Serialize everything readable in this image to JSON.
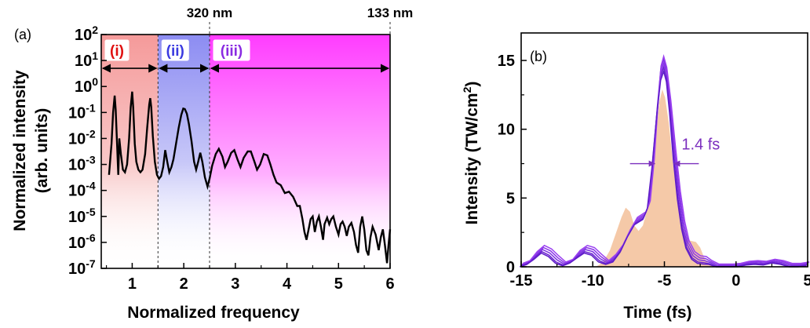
{
  "chart_data": [
    {
      "panel": "(a)",
      "type": "line",
      "xlabel": "Normalized frequency",
      "ylabel_lines": [
        "Normalized intensity",
        "(arb. units)"
      ],
      "xlim": [
        0.4,
        6.0
      ],
      "ylim_log10": [
        -7,
        2
      ],
      "yscale": "log",
      "x_ticks": [
        "1",
        "2",
        "3",
        "4",
        "5",
        "6"
      ],
      "y_tick_exponents": [
        "2",
        "1",
        "0",
        "-1",
        "-2",
        "-3",
        "-4",
        "-5",
        "-6",
        "-7"
      ],
      "top_labels": [
        {
          "x": 2.5,
          "text": "320 nm"
        },
        {
          "x": 6.0,
          "text": "133 nm"
        }
      ],
      "regions": [
        {
          "label": "(i)",
          "x": [
            0.4,
            1.5
          ],
          "color": "#f59a9a",
          "label_color": "#e01010"
        },
        {
          "label": "(ii)",
          "x": [
            1.5,
            2.5
          ],
          "color": "#8c8cf2",
          "label_color": "#3a3ae0"
        },
        {
          "label": "(iii)",
          "x": [
            2.5,
            6.0
          ],
          "color": "#ff3cff",
          "label_color": "#8a2be2"
        }
      ],
      "series": [
        {
          "color": "#000000",
          "points": [
            [
              0.55,
              -3.4
            ],
            [
              0.6,
              -2.2
            ],
            [
              0.63,
              -1.0
            ],
            [
              0.66,
              -0.35
            ],
            [
              0.68,
              -0.9
            ],
            [
              0.71,
              -2.4
            ],
            [
              0.73,
              -3.4
            ],
            [
              0.75,
              -2.0
            ],
            [
              0.78,
              -2.6
            ],
            [
              0.82,
              -3.2
            ],
            [
              0.86,
              -3.3
            ],
            [
              0.9,
              -3.0
            ],
            [
              0.94,
              -2.0
            ],
            [
              0.97,
              -0.8
            ],
            [
              1.0,
              -0.2
            ],
            [
              1.02,
              -0.8
            ],
            [
              1.05,
              -2.2
            ],
            [
              1.08,
              -2.9
            ],
            [
              1.12,
              -3.2
            ],
            [
              1.16,
              -3.3
            ],
            [
              1.2,
              -3.2
            ],
            [
              1.25,
              -2.6
            ],
            [
              1.29,
              -1.6
            ],
            [
              1.33,
              -0.7
            ],
            [
              1.35,
              -0.45
            ],
            [
              1.37,
              -0.8
            ],
            [
              1.4,
              -1.9
            ],
            [
              1.44,
              -2.9
            ],
            [
              1.48,
              -3.4
            ],
            [
              1.52,
              -3.55
            ],
            [
              1.56,
              -3.45
            ],
            [
              1.6,
              -3.1
            ],
            [
              1.64,
              -2.45
            ],
            [
              1.68,
              -2.9
            ],
            [
              1.72,
              -3.3
            ],
            [
              1.76,
              -3.1
            ],
            [
              1.8,
              -2.8
            ],
            [
              1.85,
              -2.2
            ],
            [
              1.9,
              -1.6
            ],
            [
              1.95,
              -1.1
            ],
            [
              1.99,
              -0.85
            ],
            [
              2.02,
              -0.87
            ],
            [
              2.06,
              -1.05
            ],
            [
              2.1,
              -1.45
            ],
            [
              2.15,
              -2.1
            ],
            [
              2.2,
              -2.9
            ],
            [
              2.24,
              -3.2
            ],
            [
              2.28,
              -2.9
            ],
            [
              2.32,
              -2.55
            ],
            [
              2.36,
              -2.9
            ],
            [
              2.41,
              -3.5
            ],
            [
              2.46,
              -3.85
            ],
            [
              2.5,
              -3.55
            ],
            [
              2.55,
              -3.05
            ],
            [
              2.62,
              -2.6
            ],
            [
              2.68,
              -2.4
            ],
            [
              2.75,
              -2.7
            ],
            [
              2.8,
              -3.1
            ],
            [
              2.85,
              -2.9
            ],
            [
              2.92,
              -2.55
            ],
            [
              2.98,
              -2.45
            ],
            [
              3.04,
              -2.8
            ],
            [
              3.1,
              -3.1
            ],
            [
              3.16,
              -2.75
            ],
            [
              3.24,
              -2.5
            ],
            [
              3.3,
              -2.5
            ],
            [
              3.37,
              -2.9
            ],
            [
              3.42,
              -3.2
            ],
            [
              3.48,
              -3.0
            ],
            [
              3.55,
              -2.6
            ],
            [
              3.62,
              -2.65
            ],
            [
              3.68,
              -3.0
            ],
            [
              3.74,
              -3.4
            ],
            [
              3.8,
              -3.7
            ],
            [
              3.88,
              -3.8
            ],
            [
              3.96,
              -4.1
            ],
            [
              4.04,
              -4.05
            ],
            [
              4.12,
              -4.25
            ],
            [
              4.2,
              -4.6
            ],
            [
              4.25,
              -4.6
            ],
            [
              4.3,
              -5.1
            ],
            [
              4.34,
              -5.6
            ],
            [
              4.38,
              -5.9
            ],
            [
              4.42,
              -5.5
            ],
            [
              4.46,
              -5.1
            ],
            [
              4.5,
              -5.0
            ],
            [
              4.54,
              -5.6
            ],
            [
              4.58,
              -5.2
            ],
            [
              4.62,
              -5.0
            ],
            [
              4.66,
              -5.4
            ],
            [
              4.7,
              -5.9
            ],
            [
              4.73,
              -5.3
            ],
            [
              4.78,
              -5.05
            ],
            [
              4.82,
              -5.3
            ],
            [
              4.86,
              -5.1
            ],
            [
              4.9,
              -5.0
            ],
            [
              4.95,
              -5.4
            ],
            [
              5.0,
              -5.7
            ],
            [
              5.04,
              -5.3
            ],
            [
              5.08,
              -5.2
            ],
            [
              5.12,
              -5.4
            ],
            [
              5.16,
              -5.75
            ],
            [
              5.2,
              -5.4
            ],
            [
              5.25,
              -5.25
            ],
            [
              5.3,
              -5.6
            ],
            [
              5.34,
              -6.1
            ],
            [
              5.38,
              -6.4
            ],
            [
              5.42,
              -5.4
            ],
            [
              5.46,
              -5.0
            ],
            [
              5.5,
              -5.5
            ],
            [
              5.54,
              -6.3
            ],
            [
              5.58,
              -6.5
            ],
            [
              5.62,
              -5.8
            ],
            [
              5.66,
              -5.4
            ],
            [
              5.72,
              -5.7
            ],
            [
              5.78,
              -6.3
            ],
            [
              5.82,
              -5.8
            ],
            [
              5.86,
              -5.5
            ],
            [
              5.9,
              -6.1
            ],
            [
              5.94,
              -6.8
            ],
            [
              5.97,
              -6.1
            ],
            [
              6.0,
              -5.5
            ]
          ]
        }
      ],
      "annotations": [
        {
          "text": "",
          "arrow_x": [
            0.4,
            1.5
          ],
          "y_log10": 0.7
        },
        {
          "text": "",
          "arrow_x": [
            1.5,
            2.5
          ],
          "y_log10": 0.7
        },
        {
          "text": "",
          "arrow_x": [
            2.5,
            6.0
          ],
          "y_log10": 0.7
        }
      ]
    },
    {
      "panel": "(b)",
      "type": "line",
      "xlabel": "Time (fs)",
      "ylabel": "Intensity (TW/cm",
      "ylabel_sup": "2",
      "ylabel_end": ")",
      "xlim": [
        -15,
        5
      ],
      "ylim": [
        0,
        17
      ],
      "x_ticks": [
        -15,
        -10,
        -5,
        0,
        5
      ],
      "y_ticks": [
        0,
        5,
        10,
        15
      ],
      "annotation": {
        "text": "1.4 fs",
        "x_left": -5.65,
        "x_right": -4.35,
        "y": 7.5,
        "color": "#7b2fbe"
      },
      "filled_area": {
        "color": "#f5c9a8",
        "points": [
          [
            -9.8,
            0
          ],
          [
            -9.3,
            0.3
          ],
          [
            -8.8,
            1.2
          ],
          [
            -8.4,
            2.4
          ],
          [
            -8.0,
            3.6
          ],
          [
            -7.7,
            4.3
          ],
          [
            -7.4,
            4.0
          ],
          [
            -7.1,
            3.0
          ],
          [
            -6.8,
            2.6
          ],
          [
            -6.5,
            3.0
          ],
          [
            -6.2,
            4.2
          ],
          [
            -5.9,
            6.5
          ],
          [
            -5.6,
            9.5
          ],
          [
            -5.35,
            12.0
          ],
          [
            -5.15,
            12.9
          ],
          [
            -4.95,
            12.3
          ],
          [
            -4.7,
            10.5
          ],
          [
            -4.4,
            7.5
          ],
          [
            -4.1,
            5.0
          ],
          [
            -3.8,
            3.3
          ],
          [
            -3.5,
            2.3
          ],
          [
            -3.2,
            1.9
          ],
          [
            -2.8,
            1.8
          ],
          [
            -2.5,
            1.4
          ],
          [
            -2.2,
            0.6
          ],
          [
            -1.8,
            0.1
          ],
          [
            -1.4,
            0
          ]
        ]
      },
      "series": [
        {
          "color": "#7b2fe0",
          "offset": 0.0,
          "peak": 15.1,
          "shift": 0.0
        },
        {
          "color": "#8a36e8",
          "offset": 0.15,
          "peak": 14.8,
          "shift": 0.06
        },
        {
          "color": "#6a22d0",
          "offset": -0.15,
          "peak": 14.5,
          "shift": -0.06
        },
        {
          "color": "#9a40f0",
          "offset": 0.3,
          "peak": 15.3,
          "shift": 0.12
        },
        {
          "color": "#5e1cc8",
          "offset": -0.25,
          "peak": 14.2,
          "shift": -0.1
        }
      ],
      "base_curve": [
        [
          -15,
          0.1
        ],
        [
          -14.5,
          0.3
        ],
        [
          -14.0,
          0.8
        ],
        [
          -13.5,
          1.25
        ],
        [
          -13.0,
          1.0
        ],
        [
          -12.5,
          0.5
        ],
        [
          -12.0,
          0.2
        ],
        [
          -11.5,
          0.4
        ],
        [
          -11.0,
          0.9
        ],
        [
          -10.5,
          1.25
        ],
        [
          -10.0,
          1.1
        ],
        [
          -9.5,
          0.6
        ],
        [
          -9.0,
          0.3
        ],
        [
          -8.5,
          0.6
        ],
        [
          -8.0,
          1.3
        ],
        [
          -7.5,
          2.4
        ],
        [
          -7.0,
          3.3
        ],
        [
          -6.7,
          3.5
        ],
        [
          -6.4,
          3.7
        ],
        [
          -6.1,
          4.5
        ],
        [
          -5.8,
          7.5
        ],
        [
          -5.5,
          11.5
        ],
        [
          -5.25,
          14.3
        ],
        [
          -5.05,
          15.0
        ],
        [
          -4.85,
          14.2
        ],
        [
          -4.6,
          11.8
        ],
        [
          -4.3,
          8.2
        ],
        [
          -4.0,
          5.2
        ],
        [
          -3.7,
          3.0
        ],
        [
          -3.4,
          1.6
        ],
        [
          -3.0,
          0.8
        ],
        [
          -2.6,
          0.5
        ],
        [
          -2.2,
          0.45
        ],
        [
          -1.8,
          0.3
        ],
        [
          -1.3,
          0.05
        ],
        [
          -0.8,
          0.05
        ],
        [
          -0.3,
          0.05
        ],
        [
          0.2,
          0.1
        ],
        [
          0.8,
          0.25
        ],
        [
          1.4,
          0.3
        ],
        [
          2.0,
          0.25
        ],
        [
          2.6,
          0.4
        ],
        [
          3.2,
          0.3
        ],
        [
          3.8,
          0.1
        ],
        [
          4.4,
          0.1
        ],
        [
          5.0,
          0.2
        ]
      ]
    }
  ],
  "colors": {
    "region_i": "#f59a9a",
    "region_ii": "#8c8cf2",
    "region_iii": "#ff3cff",
    "curve_a": "#000000",
    "curve_b": "#7b2fe0",
    "fill_b": "#f5c9a8"
  }
}
